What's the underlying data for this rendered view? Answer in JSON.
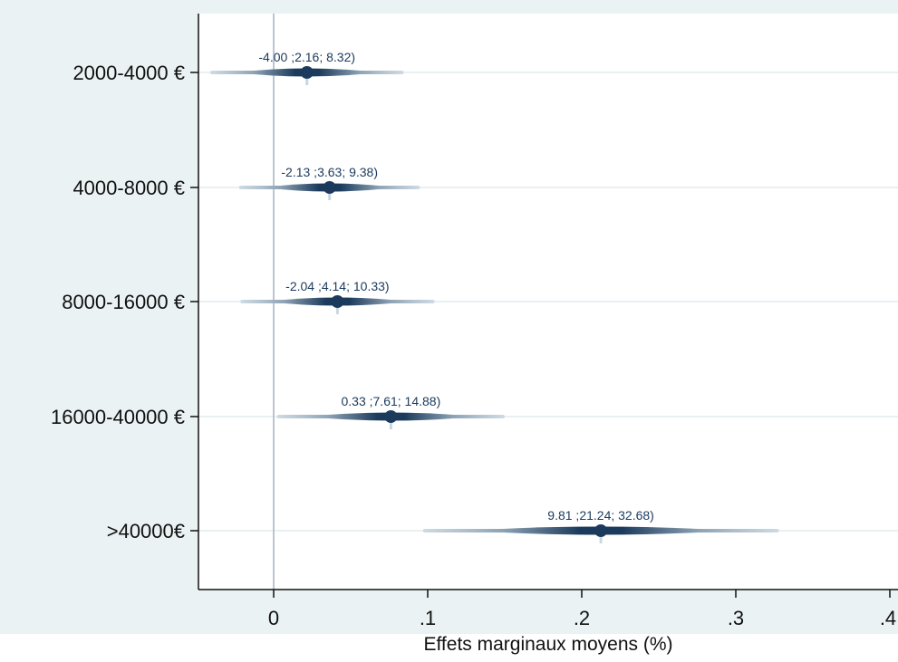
{
  "chart_data": {
    "type": "forest",
    "title": "",
    "xlabel": "Effets marginaux moyens (%)",
    "ylabel": "",
    "xlim": [
      -0.05,
      0.4
    ],
    "x_ticks": [
      0,
      0.1,
      0.2,
      0.3,
      0.4
    ],
    "x_tick_labels": [
      "0",
      ".1",
      ".2",
      ".3",
      ".4"
    ],
    "reference_line_x": 0,
    "grid": "horizontal",
    "colors": {
      "marker": "#1b3a5c",
      "interval_light": "#c9d6df",
      "reference_line": "#b9c6d0",
      "gridline": "#dde7ea",
      "outer_background": "#eaf2f3",
      "plot_background": "#ffffff"
    },
    "categories": [
      "2000-4000 €",
      "4000-8000 €",
      "8000-16000 €",
      "16000-40000 €",
      ">40000€"
    ],
    "points": [
      {
        "category": "2000-4000 €",
        "lower": -0.04,
        "estimate": 0.0216,
        "upper": 0.0832,
        "label": "-4.00 ;2.16; 8.32)"
      },
      {
        "category": "4000-8000 €",
        "lower": -0.0213,
        "estimate": 0.0363,
        "upper": 0.0938,
        "label": "-2.13 ;3.63; 9.38)"
      },
      {
        "category": "8000-16000 €",
        "lower": -0.0204,
        "estimate": 0.0414,
        "upper": 0.1033,
        "label": "-2.04 ;4.14; 10.33)"
      },
      {
        "category": "16000-40000 €",
        "lower": 0.0033,
        "estimate": 0.0761,
        "upper": 0.1488,
        "label": "0.33 ;7.61; 14.88)"
      },
      {
        "category": ">40000€",
        "lower": 0.0981,
        "estimate": 0.2124,
        "upper": 0.3268,
        "label": "9.81 ;21.24; 32.68)"
      }
    ]
  }
}
